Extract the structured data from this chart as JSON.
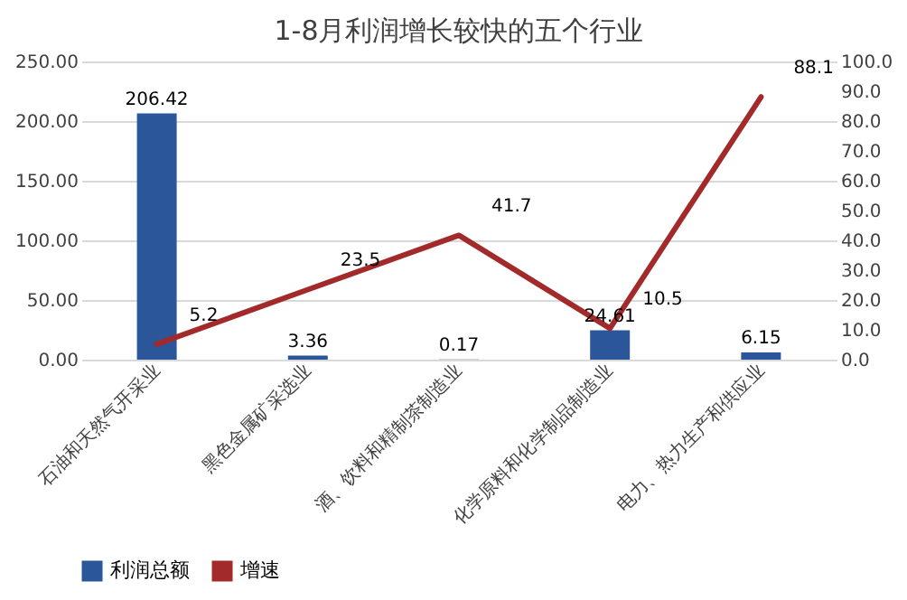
{
  "chart_data": {
    "type": "bar",
    "title": "1-8月利润增长较快的五个行业",
    "categories": [
      "石油和天然气开采业",
      "黑色金属矿采选业",
      "酒、饮料和精制茶制造业",
      "化学原料和化学制品制造业",
      "电力、热力生产和供应业"
    ],
    "series": [
      {
        "name": "利润总额",
        "color": "#2b579a",
        "values": [
          206.42,
          3.36,
          0.17,
          24.61,
          6.15
        ]
      },
      {
        "name": "增速",
        "type": "line",
        "axis": "y2",
        "color": "#a32a2a",
        "values": [
          5.2,
          23.5,
          41.7,
          10.5,
          88.1
        ]
      }
    ],
    "ylim": [
      0,
      250
    ],
    "yticks": [
      {
        "value": 0,
        "label": "0.00"
      },
      {
        "value": 50,
        "label": "50.00"
      },
      {
        "value": 100,
        "label": "100.00"
      },
      {
        "value": 150,
        "label": "150.00"
      },
      {
        "value": 200,
        "label": "200.00"
      },
      {
        "value": 250,
        "label": "250.00"
      }
    ],
    "y2lim": [
      0,
      100
    ],
    "y2ticks": [
      {
        "value": 0,
        "label": "0.0"
      },
      {
        "value": 10,
        "label": "10.0"
      },
      {
        "value": 20,
        "label": "20.0"
      },
      {
        "value": 30,
        "label": "30.0"
      },
      {
        "value": 40,
        "label": "40.0"
      },
      {
        "value": 50,
        "label": "50.0"
      },
      {
        "value": 60,
        "label": "60.0"
      },
      {
        "value": 70,
        "label": "70.0"
      },
      {
        "value": 80,
        "label": "80.0"
      },
      {
        "value": 90,
        "label": "90.0"
      },
      {
        "value": 100,
        "label": "100.0"
      }
    ],
    "grid": "y",
    "legend": "bottom",
    "data_labels": true
  }
}
